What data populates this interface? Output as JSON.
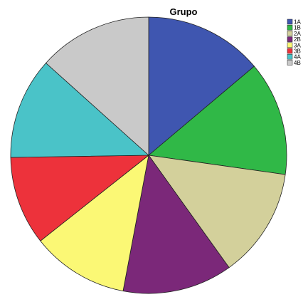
{
  "chart_data": {
    "type": "pie",
    "title": "Grupo",
    "categories": [
      "1A",
      "1B",
      "2A",
      "2B",
      "3A",
      "3B",
      "4A",
      "4B"
    ],
    "values": [
      14.0,
      13.5,
      13.0,
      13.0,
      11.5,
      10.5,
      12.0,
      13.5
    ],
    "colors": [
      "#3f56b0",
      "#30b847",
      "#d3d09b",
      "#7b2879",
      "#fbf875",
      "#ed323b",
      "#4ac3c8",
      "#c9c9c9"
    ],
    "start_angle": "12 o'clock",
    "direction": "clockwise",
    "legend_position": "top-right"
  }
}
